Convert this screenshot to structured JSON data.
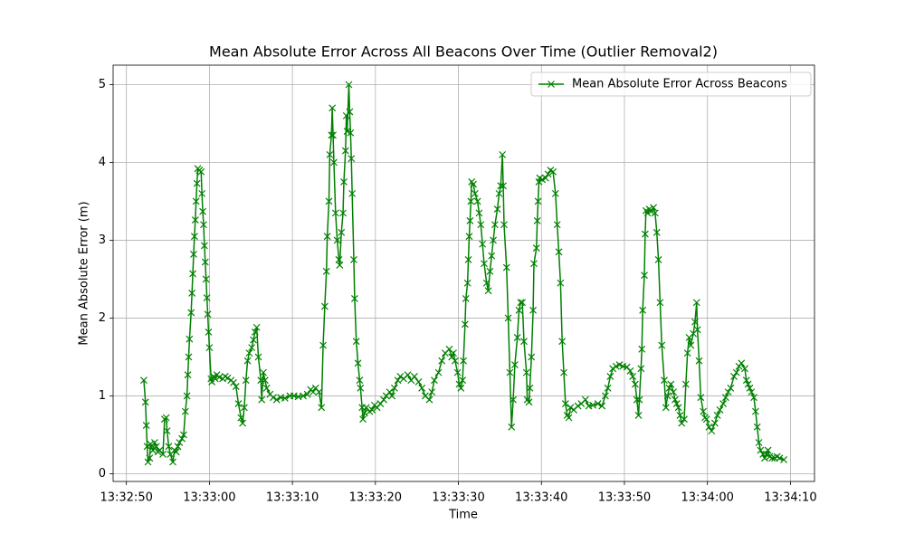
{
  "chart_data": {
    "type": "line",
    "title": "Mean Absolute Error Across All Beacons Over Time (Outlier Removal2)",
    "x_label": "Time",
    "y_label": "Mean Absolute Error (m)",
    "x": [
      48772.1,
      48772.3,
      48772.4,
      48772.5,
      48772.6,
      48772.8,
      48772.9,
      48773.2,
      48773.4,
      48773.6,
      48773.8,
      48774.0,
      48774.4,
      48774.6,
      48774.8,
      48774.9,
      48775.1,
      48775.3,
      48775.6,
      48775.8,
      48776.0,
      48776.2,
      48776.4,
      48776.7,
      48776.9,
      48777.1,
      48777.3,
      48777.4,
      48777.5,
      48777.6,
      48777.8,
      48777.9,
      48778.0,
      48778.1,
      48778.2,
      48778.3,
      48778.4,
      48778.5,
      48778.6,
      48778.8,
      48779.0,
      48779.1,
      48779.2,
      48779.3,
      48779.4,
      48779.5,
      48779.6,
      48779.7,
      48779.8,
      48779.9,
      48780.0,
      48780.2,
      48780.3,
      48780.5,
      48780.7,
      48780.9,
      48781.2,
      48781.6,
      48781.9,
      48782.2,
      48782.6,
      48782.9,
      48783.2,
      48783.5,
      48783.8,
      48784.0,
      48784.2,
      48784.4,
      48784.6,
      48784.8,
      48785.1,
      48785.3,
      48785.5,
      48785.7,
      48785.9,
      48786.2,
      48786.3,
      48786.5,
      48786.7,
      48786.9,
      48787.3,
      48787.7,
      48788.1,
      48788.6,
      48789.1,
      48789.7,
      48790.2,
      48790.7,
      48791.3,
      48791.8,
      48792.2,
      48792.5,
      48792.8,
      48793.2,
      48793.5,
      48793.7,
      48793.9,
      48794.1,
      48794.2,
      48794.4,
      48794.5,
      48794.7,
      48794.8,
      48794.9,
      48795.0,
      48795.2,
      48795.4,
      48795.6,
      48795.7,
      48795.9,
      48796.1,
      48796.2,
      48796.4,
      48796.5,
      48796.6,
      48796.8,
      48796.9,
      48797.0,
      48797.1,
      48797.2,
      48797.4,
      48797.5,
      48797.7,
      48797.9,
      48798.1,
      48798.2,
      48798.4,
      48798.5,
      48798.7,
      48798.9,
      48799.3,
      48799.6,
      48799.9,
      48800.2,
      48800.6,
      48801.0,
      48801.3,
      48801.7,
      48802.0,
      48802.3,
      48802.7,
      48803.0,
      48803.4,
      48803.9,
      48804.3,
      48804.7,
      48805.2,
      48805.6,
      48806.0,
      48806.5,
      48806.8,
      48807.1,
      48807.6,
      48808.0,
      48808.4,
      48808.9,
      48809.2,
      48809.4,
      48809.6,
      48809.9,
      48810.1,
      48810.3,
      48810.5,
      48810.6,
      48810.8,
      48810.9,
      48811.1,
      48811.2,
      48811.3,
      48811.4,
      48811.5,
      48811.6,
      48811.8,
      48812.0,
      48812.3,
      48812.5,
      48812.7,
      48812.9,
      48813.1,
      48813.4,
      48813.6,
      48813.8,
      48814.0,
      48814.2,
      48814.4,
      48814.7,
      48814.9,
      48815.1,
      48815.3,
      48815.4,
      48815.5,
      48815.8,
      48816.0,
      48816.2,
      48816.4,
      48816.6,
      48816.8,
      48817.1,
      48817.3,
      48817.5,
      48817.7,
      48817.9,
      48818.2,
      48818.3,
      48818.5,
      48818.6,
      48818.8,
      48819.0,
      48819.1,
      48819.4,
      48819.5,
      48819.6,
      48819.7,
      48819.8,
      48820.1,
      48820.5,
      48820.8,
      48821.1,
      48821.4,
      48821.7,
      48821.9,
      48822.1,
      48822.3,
      48822.5,
      48822.7,
      48822.9,
      48823.1,
      48823.3,
      48823.5,
      48823.9,
      48824.4,
      48824.8,
      48825.3,
      48825.7,
      48826.2,
      48826.8,
      48827.3,
      48827.7,
      48828.0,
      48828.3,
      48828.6,
      48829.0,
      48829.4,
      48829.8,
      48830.3,
      48830.7,
      48831.0,
      48831.3,
      48831.5,
      48831.7,
      48831.8,
      48832.0,
      48832.1,
      48832.2,
      48832.4,
      48832.5,
      48832.6,
      48832.8,
      48833.0,
      48833.2,
      48833.5,
      48833.7,
      48833.9,
      48834.1,
      48834.3,
      48834.5,
      48834.8,
      48835.0,
      48835.2,
      48835.4,
      48835.6,
      48835.9,
      48836.1,
      48836.3,
      48836.5,
      48836.7,
      48836.9,
      48837.2,
      48837.4,
      48837.6,
      48837.8,
      48838.0,
      48838.3,
      48838.5,
      48838.7,
      48838.8,
      48839.0,
      48839.2,
      48839.5,
      48839.7,
      48839.9,
      48840.2,
      48840.5,
      48840.9,
      48841.2,
      48841.5,
      48841.9,
      48842.2,
      48842.5,
      48842.8,
      48843.2,
      48843.5,
      48843.8,
      48844.1,
      48844.5,
      48844.7,
      48844.9,
      48845.1,
      48845.3,
      48845.6,
      48845.8,
      48846.0,
      48846.2,
      48846.4,
      48846.7,
      48846.9,
      48847.1,
      48847.3,
      48847.5,
      48847.8,
      48848.1,
      48848.4,
      48848.7,
      48849.2
    ],
    "series": [
      {
        "name": "Mean Absolute Error Across Beacons",
        "color": "#008000",
        "marker": "x",
        "values": [
          1.2,
          0.92,
          0.62,
          0.35,
          0.15,
          0.2,
          0.38,
          0.3,
          0.4,
          0.35,
          0.28,
          0.3,
          0.25,
          0.7,
          0.72,
          0.55,
          0.35,
          0.25,
          0.15,
          0.3,
          0.28,
          0.35,
          0.4,
          0.45,
          0.5,
          0.8,
          1.0,
          1.27,
          1.5,
          1.73,
          2.07,
          2.32,
          2.57,
          2.82,
          3.05,
          3.26,
          3.5,
          3.73,
          3.92,
          3.9,
          3.88,
          3.6,
          3.37,
          3.2,
          2.93,
          2.72,
          2.5,
          2.26,
          2.05,
          1.82,
          1.62,
          1.22,
          1.18,
          1.25,
          1.22,
          1.27,
          1.24,
          1.22,
          1.25,
          1.23,
          1.2,
          1.17,
          1.12,
          0.9,
          0.72,
          0.65,
          0.85,
          1.2,
          1.45,
          1.55,
          1.62,
          1.72,
          1.82,
          1.88,
          1.5,
          1.2,
          0.95,
          1.3,
          1.2,
          1.1,
          1.02,
          0.98,
          0.95,
          0.98,
          0.97,
          1.0,
          1.0,
          0.99,
          1.0,
          1.02,
          1.08,
          1.05,
          1.1,
          1.05,
          0.85,
          1.65,
          2.15,
          2.6,
          3.05,
          3.5,
          4.1,
          4.35,
          4.7,
          4.35,
          4.0,
          3.35,
          3.0,
          2.75,
          2.68,
          3.1,
          3.35,
          3.75,
          4.15,
          4.6,
          4.4,
          5.0,
          4.65,
          4.38,
          4.05,
          3.6,
          2.75,
          2.25,
          1.7,
          1.42,
          1.2,
          1.1,
          0.85,
          0.7,
          0.78,
          0.85,
          0.8,
          0.82,
          0.88,
          0.85,
          0.9,
          0.95,
          1.0,
          1.05,
          1.0,
          1.1,
          1.2,
          1.25,
          1.22,
          1.27,
          1.2,
          1.25,
          1.18,
          1.1,
          1.0,
          0.95,
          1.05,
          1.2,
          1.3,
          1.45,
          1.55,
          1.6,
          1.5,
          1.55,
          1.45,
          1.3,
          1.15,
          1.1,
          1.2,
          1.45,
          1.92,
          2.25,
          2.45,
          2.75,
          3.05,
          3.25,
          3.5,
          3.75,
          3.72,
          3.6,
          3.5,
          3.35,
          3.2,
          2.95,
          2.7,
          2.45,
          2.35,
          2.6,
          2.8,
          3.0,
          3.2,
          3.4,
          3.6,
          3.7,
          4.1,
          3.7,
          3.2,
          2.65,
          2.0,
          1.3,
          0.6,
          0.95,
          1.4,
          1.75,
          2.1,
          2.2,
          2.2,
          1.7,
          1.3,
          0.95,
          0.92,
          1.1,
          1.5,
          2.1,
          2.7,
          2.9,
          3.25,
          3.5,
          3.75,
          3.8,
          3.78,
          3.8,
          3.85,
          3.9,
          3.88,
          3.6,
          3.2,
          2.85,
          2.45,
          1.7,
          1.3,
          0.9,
          0.75,
          0.72,
          0.85,
          0.82,
          0.87,
          0.9,
          0.95,
          0.87,
          0.88,
          0.9,
          0.87,
          1.0,
          1.1,
          1.25,
          1.35,
          1.38,
          1.4,
          1.38,
          1.37,
          1.32,
          1.25,
          1.15,
          0.95,
          0.75,
          0.95,
          1.35,
          1.6,
          2.1,
          2.55,
          3.08,
          3.38,
          3.35,
          3.4,
          3.37,
          3.42,
          3.35,
          3.1,
          2.75,
          2.2,
          1.65,
          1.2,
          0.85,
          1.0,
          1.1,
          1.15,
          1.05,
          0.95,
          0.9,
          0.85,
          0.75,
          0.65,
          0.7,
          1.15,
          1.55,
          1.75,
          1.65,
          1.8,
          1.95,
          2.2,
          1.85,
          1.45,
          0.98,
          0.8,
          0.72,
          0.7,
          0.6,
          0.55,
          0.65,
          0.75,
          0.82,
          0.9,
          0.98,
          1.05,
          1.1,
          1.25,
          1.3,
          1.38,
          1.42,
          1.35,
          1.2,
          1.15,
          1.1,
          1.05,
          0.98,
          0.8,
          0.6,
          0.4,
          0.3,
          0.25,
          0.2,
          0.25,
          0.3,
          0.22,
          0.2,
          0.2,
          0.22,
          0.2,
          0.18
        ]
      }
    ],
    "xlim": [
      48768.4,
      48852.9
    ],
    "xticks": [
      {
        "value": 48770,
        "label": "13:32:50"
      },
      {
        "value": 48780,
        "label": "13:33:00"
      },
      {
        "value": 48790,
        "label": "13:33:10"
      },
      {
        "value": 48800,
        "label": "13:33:20"
      },
      {
        "value": 48810,
        "label": "13:33:30"
      },
      {
        "value": 48820,
        "label": "13:33:40"
      },
      {
        "value": 48830,
        "label": "13:33:50"
      },
      {
        "value": 48840,
        "label": "13:34:00"
      },
      {
        "value": 48850,
        "label": "13:34:10"
      }
    ],
    "ylim": [
      -0.1,
      5.25
    ],
    "yticks": [
      0,
      1,
      2,
      3,
      4,
      5
    ],
    "grid": true,
    "legend": "upper right"
  }
}
